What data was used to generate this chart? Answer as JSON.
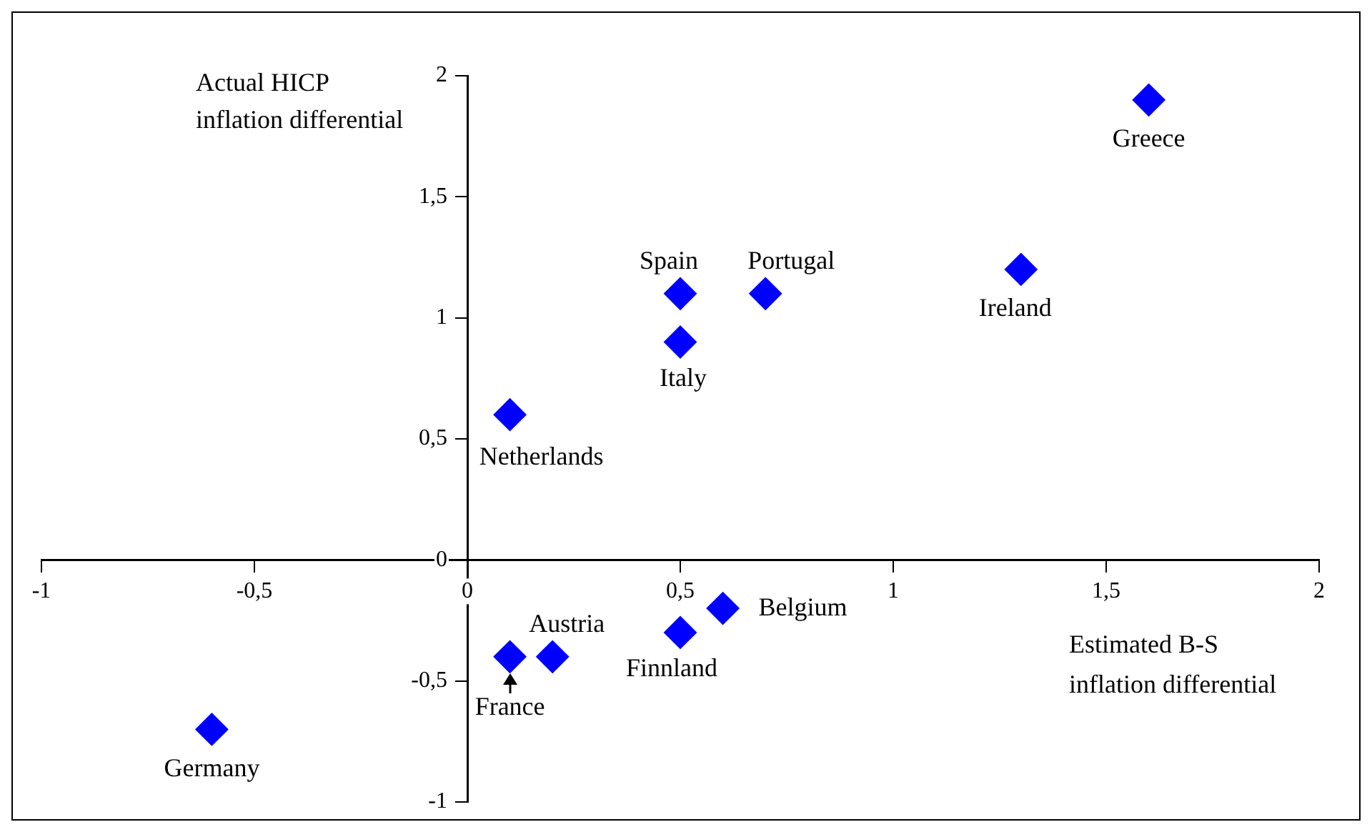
{
  "chart_data": {
    "type": "scatter",
    "xlabel": "Estimated B-S inflation differential",
    "ylabel": "Actual HICP inflation differential",
    "legend": false,
    "grid": false,
    "marker": "diamond",
    "xlim": [
      -1,
      2
    ],
    "ylim": [
      -1,
      2
    ],
    "xticks": [
      -1,
      {
        "value": -0.5,
        "label": "-0,5"
      },
      0,
      {
        "value": 0.5,
        "label": "0,5"
      },
      1,
      {
        "value": 1.5,
        "label": "1,5"
      },
      2
    ],
    "yticks": [
      -1,
      {
        "value": -0.5,
        "label": "-0,5"
      },
      0,
      {
        "value": 0.5,
        "label": "0,5"
      },
      1,
      {
        "value": 1.5,
        "label": "1,5"
      },
      2
    ],
    "series": [
      {
        "name": "Greece",
        "color": "#0000ff",
        "x": [
          1.6
        ],
        "values": [
          1.9
        ]
      },
      {
        "name": "Ireland",
        "color": "#0000ff",
        "x": [
          1.3
        ],
        "values": [
          1.2
        ]
      },
      {
        "name": "Spain",
        "color": "#0000ff",
        "x": [
          0.5
        ],
        "values": [
          1.1
        ]
      },
      {
        "name": "Portugal",
        "color": "#0000ff",
        "x": [
          0.7
        ],
        "values": [
          1.1
        ]
      },
      {
        "name": "Italy",
        "color": "#0000ff",
        "x": [
          0.5
        ],
        "values": [
          0.9
        ]
      },
      {
        "name": "Netherlands",
        "color": "#0000ff",
        "x": [
          0.1
        ],
        "values": [
          0.6
        ]
      },
      {
        "name": "Belgium",
        "color": "#0000ff",
        "x": [
          0.6
        ],
        "values": [
          -0.2
        ]
      },
      {
        "name": "Finnland",
        "color": "#0000ff",
        "x": [
          0.5
        ],
        "values": [
          -0.3
        ]
      },
      {
        "name": "Austria",
        "color": "#0000ff",
        "x": [
          0.2
        ],
        "values": [
          -0.4
        ]
      },
      {
        "name": "France",
        "color": "#0000ff",
        "x": [
          0.1
        ],
        "values": [
          -0.4
        ]
      },
      {
        "name": "Germany",
        "color": "#0000ff",
        "x": [
          -0.6
        ],
        "values": [
          -0.7
        ]
      }
    ]
  }
}
